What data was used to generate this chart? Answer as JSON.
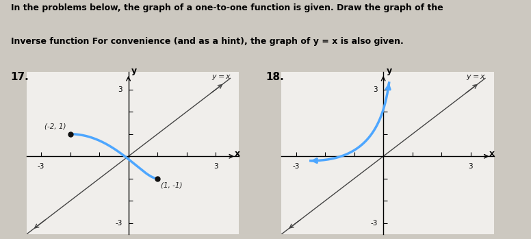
{
  "title_line1": "In the problems below, the graph of a one-to-one function is given. Draw the graph of the",
  "title_line2": "Inverse function For convenience (and as a hint), the graph of y = x is also given.",
  "problem_17_label": "17.",
  "problem_18_label": "18.",
  "yx_label": "y = x",
  "y_label": "y",
  "x_label": "x",
  "xlim": [
    -3.5,
    3.8
  ],
  "ylim": [
    -3.5,
    3.8
  ],
  "curve17_color": "#4da6ff",
  "curve18_color": "#4da6ff",
  "line_color": "#444444",
  "background_color": "#f0eeeb",
  "fig_background": "#ccc8c0",
  "point17_1": [
    -2,
    1
  ],
  "point17_2": [
    1,
    -1
  ],
  "annotation17_1": "(-2, 1)",
  "annotation17_2": "(1, -1)"
}
